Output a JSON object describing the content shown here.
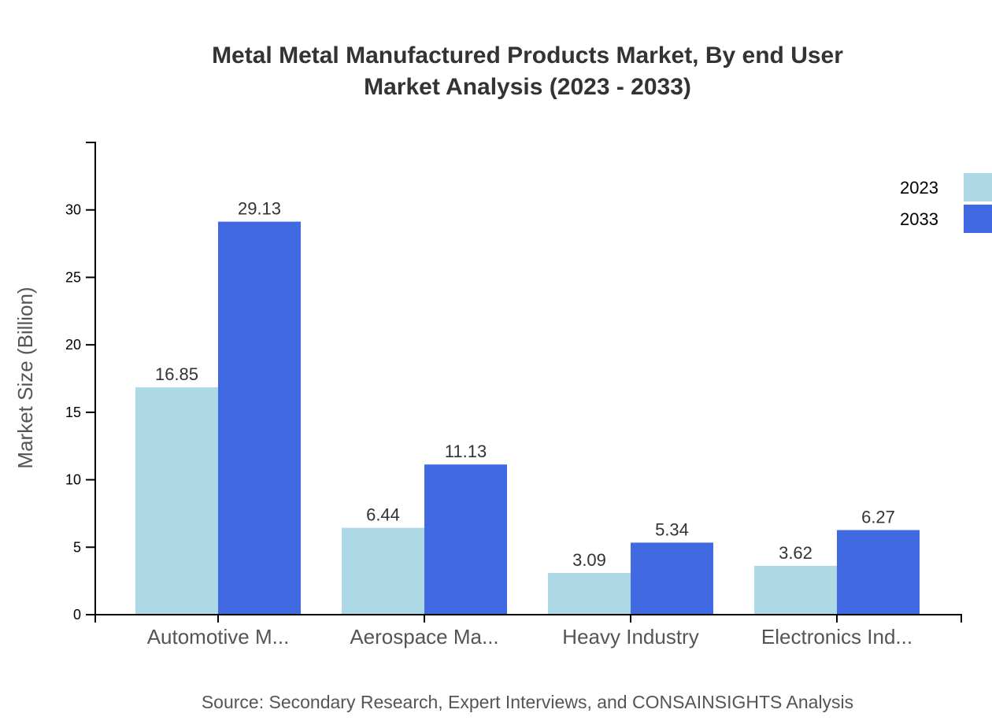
{
  "chart_data": {
    "type": "bar",
    "title": [
      "Metal Metal Manufactured Products Market, By end User",
      "Market Analysis (2023 - 2033)"
    ],
    "xlabel": "",
    "ylabel": "Market Size (Billion)",
    "categories": [
      "Automotive M...",
      "Aerospace Ma...",
      "Heavy Industry",
      "Electronics Ind..."
    ],
    "series": [
      {
        "name": "2023",
        "color": "#ADD8E6",
        "values": [
          16.85,
          6.44,
          3.09,
          3.62
        ],
        "labels": [
          "16.85",
          "6.44",
          "3.09",
          "3.62"
        ]
      },
      {
        "name": "2033",
        "color": "#4169E1",
        "values": [
          29.13,
          11.13,
          5.34,
          6.27
        ],
        "labels": [
          "29.13",
          "11.13",
          "5.34",
          "6.27"
        ]
      }
    ],
    "ylim": [
      0,
      35
    ],
    "yticks": [
      0,
      5,
      10,
      15,
      20,
      25,
      30
    ],
    "grid": false,
    "legend": "top-right",
    "source": "Source: Secondary Research, Expert Interviews, and CONSAINSIGHTS Analysis"
  }
}
